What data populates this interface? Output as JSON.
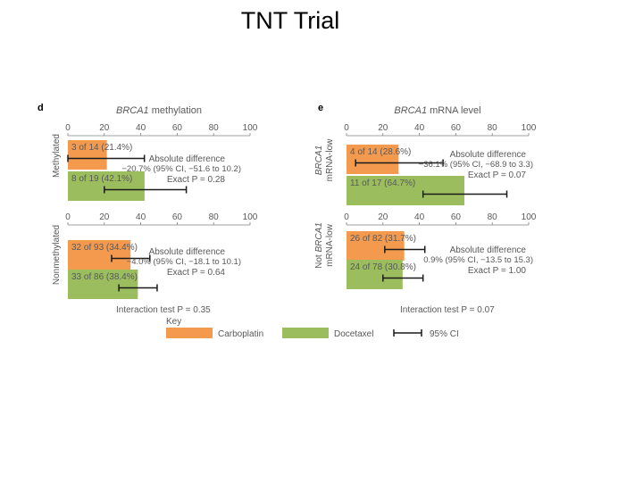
{
  "slide_title": "TNT Trial",
  "colors": {
    "carboplatin": "#F39A4E",
    "docetaxel": "#9BBD5D",
    "text": "#58595B",
    "axis": "#7F8083"
  },
  "chart_data": [
    {
      "type": "bar",
      "panel_letter": "d",
      "title": "BRCA1 methylation",
      "title_italic": "BRCA1",
      "title_rest": " methylation",
      "x_ticks": [
        "0",
        "20",
        "40",
        "60",
        "80",
        "100"
      ],
      "xlim": [
        0,
        100
      ],
      "interaction_label": "Interaction test P = 0.35",
      "groups": [
        {
          "label": "Methylated",
          "bars": [
            {
              "series": "Carboplatin",
              "value": 21.4,
              "ci": [
                0,
                42
              ],
              "label": "3 of 14 (21.4%)"
            },
            {
              "series": "Docetaxel",
              "value": 42.1,
              "ci": [
                20,
                65
              ],
              "label": "8 of 19 (42.1%)"
            }
          ],
          "diff_title": "Absolute difference",
          "diff_value": "−20.7% (95% CI, −51.6 to 10.2)",
          "diff_p": "Exact P = 0.28"
        },
        {
          "label": "Nonmethylated",
          "bars": [
            {
              "series": "Carboplatin",
              "value": 34.4,
              "ci": [
                24,
                45
              ],
              "label": "32 of 93 (34.4%)"
            },
            {
              "series": "Docetaxel",
              "value": 38.4,
              "ci": [
                28,
                49
              ],
              "label": "33 of 86 (38.4%)"
            }
          ],
          "diff_title": "Absolute difference",
          "diff_value": "−4.0% (95% CI, −18.1 to 10.1)",
          "diff_p": "Exact P = 0.64"
        }
      ]
    },
    {
      "type": "bar",
      "panel_letter": "e",
      "title": "BRCA1 mRNA level",
      "title_italic": "BRCA1",
      "title_rest": " mRNA level",
      "x_ticks": [
        "0",
        "20",
        "40",
        "60",
        "80",
        "100"
      ],
      "xlim": [
        0,
        100
      ],
      "interaction_label": "Interaction test P = 0.07",
      "groups": [
        {
          "label": "BRCA1 mRNA-low",
          "label_line1": "BRCA1",
          "label_line2": "mRNA-low",
          "bars": [
            {
              "series": "Carboplatin",
              "value": 28.6,
              "ci": [
                5,
                53
              ],
              "label": "4 of 14 (28.6%)"
            },
            {
              "series": "Docetaxel",
              "value": 64.7,
              "ci": [
                42,
                88
              ],
              "label": "11 of 17 (64.7%)"
            }
          ],
          "diff_title": "Absolute difference",
          "diff_value": "−36.1% (95% CI, −68.9 to 3.3)",
          "diff_p": "Exact P = 0.07"
        },
        {
          "label": "Not BRCA1 mRNA-low",
          "label_line1": "Not BRCA1",
          "label_line2": "mRNA-low",
          "bars": [
            {
              "series": "Carboplatin",
              "value": 31.7,
              "ci": [
                21,
                43
              ],
              "label": "26 of 82 (31.7%)"
            },
            {
              "series": "Docetaxel",
              "value": 30.8,
              "ci": [
                20,
                42
              ],
              "label": "24 of 78 (30.8%)"
            }
          ],
          "diff_title": "Absolute difference",
          "diff_value": "0.9% (95% CI, −13.5 to 15.3)",
          "diff_p": "Exact P = 1.00"
        }
      ]
    }
  ],
  "key": {
    "title": "Key",
    "items": [
      {
        "label": "Carboplatin",
        "kind": "swatch",
        "color": "#F39A4E"
      },
      {
        "label": "Docetaxel",
        "kind": "swatch",
        "color": "#9BBD5D"
      },
      {
        "label": "95% CI",
        "kind": "errorbar"
      }
    ]
  }
}
